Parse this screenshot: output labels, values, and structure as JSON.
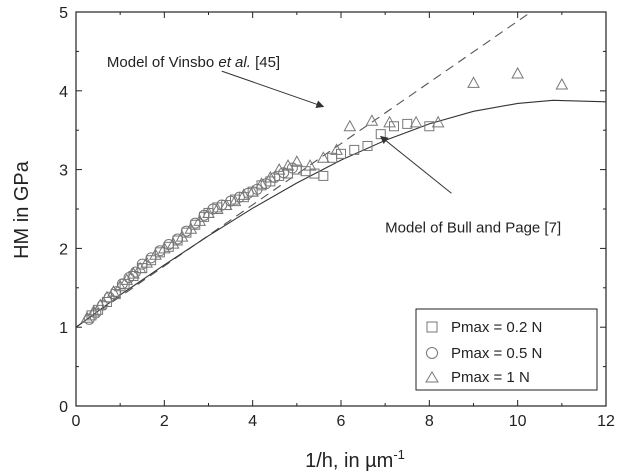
{
  "chart_data": {
    "type": "scatter",
    "xlabel": "1/h, in µm",
    "xlabel_sup": "-1",
    "ylabel": "HM in GPa",
    "xlim": [
      0,
      12
    ],
    "ylim": [
      0,
      5
    ],
    "xticks": [
      0,
      2,
      4,
      6,
      8,
      10,
      12
    ],
    "yticks": [
      0,
      1,
      2,
      3,
      4,
      5
    ],
    "grid": false,
    "legend_position": "bottom-right",
    "series": [
      {
        "name": "Pmax = 0.2 N",
        "marker": "square",
        "points": [
          [
            0.35,
            1.15
          ],
          [
            0.5,
            1.22
          ],
          [
            0.7,
            1.32
          ],
          [
            0.9,
            1.42
          ],
          [
            1.1,
            1.55
          ],
          [
            1.3,
            1.65
          ],
          [
            1.5,
            1.75
          ],
          [
            1.7,
            1.85
          ],
          [
            1.9,
            1.95
          ],
          [
            2.1,
            2.02
          ],
          [
            2.3,
            2.1
          ],
          [
            2.5,
            2.2
          ],
          [
            2.7,
            2.3
          ],
          [
            2.9,
            2.4
          ],
          [
            3.0,
            2.45
          ],
          [
            3.2,
            2.52
          ],
          [
            3.4,
            2.55
          ],
          [
            3.6,
            2.62
          ],
          [
            3.8,
            2.65
          ],
          [
            4.0,
            2.72
          ],
          [
            4.2,
            2.8
          ],
          [
            4.4,
            2.85
          ],
          [
            4.6,
            2.92
          ],
          [
            4.8,
            2.95
          ],
          [
            5.0,
            3.0
          ],
          [
            5.2,
            2.98
          ],
          [
            5.4,
            2.95
          ],
          [
            5.6,
            2.92
          ],
          [
            5.8,
            3.15
          ],
          [
            6.0,
            3.2
          ],
          [
            6.3,
            3.25
          ],
          [
            6.6,
            3.3
          ],
          [
            6.9,
            3.45
          ],
          [
            7.2,
            3.55
          ],
          [
            7.5,
            3.58
          ],
          [
            8.0,
            3.55
          ]
        ]
      },
      {
        "name": "Pmax = 0.5 N",
        "marker": "circle",
        "points": [
          [
            0.3,
            1.1
          ],
          [
            0.45,
            1.18
          ],
          [
            0.6,
            1.28
          ],
          [
            0.75,
            1.38
          ],
          [
            0.9,
            1.45
          ],
          [
            1.05,
            1.55
          ],
          [
            1.2,
            1.63
          ],
          [
            1.35,
            1.7
          ],
          [
            1.5,
            1.8
          ],
          [
            1.7,
            1.88
          ],
          [
            1.9,
            1.97
          ],
          [
            2.1,
            2.05
          ],
          [
            2.3,
            2.12
          ],
          [
            2.5,
            2.22
          ],
          [
            2.7,
            2.32
          ],
          [
            2.9,
            2.42
          ],
          [
            3.1,
            2.5
          ],
          [
            3.3,
            2.55
          ],
          [
            3.5,
            2.6
          ],
          [
            3.7,
            2.65
          ],
          [
            3.9,
            2.7
          ],
          [
            4.1,
            2.75
          ],
          [
            4.3,
            2.82
          ],
          [
            4.5,
            2.9
          ],
          [
            4.7,
            2.96
          ],
          [
            4.9,
            3.02
          ]
        ]
      },
      {
        "name": "Pmax = 1 N",
        "marker": "triangle",
        "points": [
          [
            0.25,
            1.12
          ],
          [
            0.4,
            1.2
          ],
          [
            0.55,
            1.28
          ],
          [
            0.7,
            1.38
          ],
          [
            0.85,
            1.45
          ],
          [
            1.0,
            1.52
          ],
          [
            1.15,
            1.6
          ],
          [
            1.3,
            1.68
          ],
          [
            1.45,
            1.75
          ],
          [
            1.6,
            1.82
          ],
          [
            1.8,
            1.92
          ],
          [
            2.0,
            2.0
          ],
          [
            2.2,
            2.06
          ],
          [
            2.4,
            2.15
          ],
          [
            2.6,
            2.25
          ],
          [
            2.8,
            2.35
          ],
          [
            3.0,
            2.45
          ],
          [
            3.2,
            2.5
          ],
          [
            3.4,
            2.55
          ],
          [
            3.6,
            2.6
          ],
          [
            3.8,
            2.68
          ],
          [
            4.0,
            2.72
          ],
          [
            4.2,
            2.82
          ],
          [
            4.4,
            2.9
          ],
          [
            4.6,
            3.0
          ],
          [
            4.8,
            3.05
          ],
          [
            5.0,
            3.1
          ],
          [
            5.3,
            3.05
          ],
          [
            5.6,
            3.15
          ],
          [
            5.9,
            3.25
          ],
          [
            6.2,
            3.55
          ],
          [
            6.7,
            3.62
          ],
          [
            7.1,
            3.6
          ],
          [
            7.7,
            3.6
          ],
          [
            8.2,
            3.6
          ],
          [
            9.0,
            4.1
          ],
          [
            10.0,
            4.22
          ],
          [
            11.0,
            4.08
          ]
        ]
      }
    ],
    "models": [
      {
        "label": "Model of Vinsbo et al. [45]",
        "style": "dashed",
        "points": [
          [
            0,
            1.0
          ],
          [
            10.3,
            5.0
          ]
        ]
      },
      {
        "label": "Model of Bull and Page [7]",
        "style": "solid",
        "points": [
          [
            0,
            1.0
          ],
          [
            1,
            1.41
          ],
          [
            2,
            1.79
          ],
          [
            3,
            2.16
          ],
          [
            4,
            2.51
          ],
          [
            5,
            2.83
          ],
          [
            6,
            3.12
          ],
          [
            7,
            3.37
          ],
          [
            8,
            3.58
          ],
          [
            9,
            3.74
          ],
          [
            10,
            3.84
          ],
          [
            10.8,
            3.88
          ],
          [
            12,
            3.86
          ]
        ]
      }
    ],
    "annotations": [
      {
        "text_prefix": "Model of Vinsbo ",
        "text_italic": "et al.",
        "text_suffix": " [45]",
        "target": "Model of Vinsbo et al. [45]",
        "arrow_from": [
          3.3,
          4.25
        ],
        "arrow_to": [
          5.6,
          3.8
        ],
        "text_anchor": [
          0.7,
          4.3
        ]
      },
      {
        "text": "Model of Bull and Page [7]",
        "target": "Model of Bull and Page [7]",
        "arrow_from": [
          8.5,
          2.7
        ],
        "arrow_to": [
          6.9,
          3.42
        ],
        "text_anchor": [
          7.0,
          2.2
        ]
      }
    ]
  }
}
